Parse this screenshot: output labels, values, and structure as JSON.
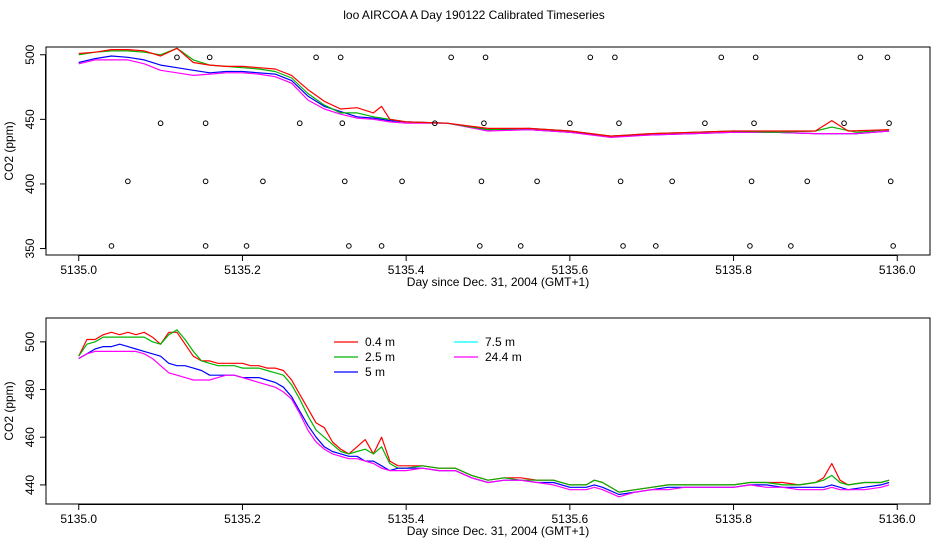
{
  "title": "loo AIRCOA A  Day 190122  Calibrated Timeseries",
  "chart_data": [
    {
      "type": "scatter",
      "xlabel": "Day since Dec. 31, 2004 (GMT+1)",
      "ylabel": "CO2 (ppm)",
      "xlim": [
        5134.96,
        5136.04
      ],
      "ylim": [
        345,
        506
      ],
      "x_ticks": [
        "5135.0",
        "5135.2",
        "5135.4",
        "5135.6",
        "5135.8",
        "5136.0"
      ],
      "x_tick_values": [
        5135.0,
        5135.2,
        5135.4,
        5135.6,
        5135.8,
        5136.0
      ],
      "y_ticks": [
        "350",
        "400",
        "450",
        "500"
      ],
      "y_tick_values": [
        350,
        400,
        450,
        500
      ],
      "series": [
        {
          "color": "#0000ff",
          "x": [
            5135.0,
            5135.02,
            5135.04,
            5135.06,
            5135.08,
            5135.1,
            5135.12,
            5135.14,
            5135.16,
            5135.18,
            5135.2,
            5135.22,
            5135.24,
            5135.26,
            5135.28,
            5135.3,
            5135.32,
            5135.34,
            5135.36,
            5135.38,
            5135.4,
            5135.45,
            5135.5,
            5135.55,
            5135.6,
            5135.65,
            5135.7,
            5135.75,
            5135.8,
            5135.85,
            5135.9,
            5135.95,
            5135.99
          ],
          "y": [
            494,
            497,
            499,
            498,
            496,
            492,
            490,
            488,
            486,
            487,
            487,
            486,
            485,
            480,
            468,
            460,
            456,
            452,
            451,
            449,
            448,
            447,
            442,
            442,
            440,
            437,
            438,
            439,
            440,
            440,
            439,
            439,
            441
          ]
        },
        {
          "color": "#ff00ff",
          "x": [
            5135.0,
            5135.02,
            5135.04,
            5135.06,
            5135.08,
            5135.1,
            5135.12,
            5135.14,
            5135.16,
            5135.18,
            5135.2,
            5135.22,
            5135.24,
            5135.26,
            5135.28,
            5135.3,
            5135.32,
            5135.34,
            5135.36,
            5135.38,
            5135.4,
            5135.45,
            5135.5,
            5135.55,
            5135.6,
            5135.65,
            5135.7,
            5135.75,
            5135.8,
            5135.85,
            5135.9,
            5135.95,
            5135.99
          ],
          "y": [
            493,
            496,
            496,
            496,
            493,
            488,
            486,
            484,
            485,
            486,
            486,
            485,
            483,
            478,
            465,
            458,
            454,
            451,
            450,
            448,
            447,
            447,
            441,
            442,
            440,
            436,
            438,
            439,
            440,
            440,
            439,
            439,
            441
          ]
        },
        {
          "color": "#00b400",
          "x": [
            5135.0,
            5135.02,
            5135.04,
            5135.06,
            5135.08,
            5135.1,
            5135.12,
            5135.14,
            5135.16,
            5135.18,
            5135.2,
            5135.22,
            5135.24,
            5135.26,
            5135.28,
            5135.3,
            5135.32,
            5135.34,
            5135.36,
            5135.38,
            5135.4,
            5135.45,
            5135.5,
            5135.55,
            5135.6,
            5135.65,
            5135.7,
            5135.75,
            5135.8,
            5135.85,
            5135.9,
            5135.92,
            5135.95,
            5135.99
          ],
          "y": [
            500,
            502,
            503,
            503,
            502,
            500,
            505,
            496,
            492,
            491,
            490,
            489,
            487,
            482,
            470,
            461,
            455,
            455,
            452,
            450,
            448,
            447,
            442,
            443,
            441,
            437,
            439,
            440,
            441,
            440,
            441,
            444,
            440,
            442
          ]
        },
        {
          "color": "#ff0000",
          "x": [
            5135.0,
            5135.02,
            5135.04,
            5135.06,
            5135.08,
            5135.1,
            5135.12,
            5135.14,
            5135.16,
            5135.18,
            5135.2,
            5135.22,
            5135.24,
            5135.26,
            5135.28,
            5135.3,
            5135.32,
            5135.34,
            5135.36,
            5135.37,
            5135.38,
            5135.4,
            5135.45,
            5135.5,
            5135.55,
            5135.6,
            5135.65,
            5135.7,
            5135.75,
            5135.8,
            5135.85,
            5135.9,
            5135.92,
            5135.94,
            5135.99
          ],
          "y": [
            501,
            502,
            504,
            504,
            503,
            499,
            505,
            494,
            492,
            491,
            491,
            490,
            489,
            484,
            473,
            464,
            458,
            459,
            455,
            460,
            450,
            448,
            447,
            443,
            443,
            441,
            437,
            439,
            440,
            441,
            441,
            441,
            449,
            441,
            442
          ]
        }
      ],
      "points": {
        "x": [
          5135.04,
          5135.06,
          5135.1,
          5135.12,
          5135.155,
          5135.155,
          5135.155,
          5135.16,
          5135.205,
          5135.225,
          5135.27,
          5135.29,
          5135.32,
          5135.322,
          5135.325,
          5135.33,
          5135.37,
          5135.395,
          5135.435,
          5135.455,
          5135.49,
          5135.492,
          5135.495,
          5135.497,
          5135.54,
          5135.56,
          5135.6,
          5135.625,
          5135.655,
          5135.66,
          5135.662,
          5135.665,
          5135.705,
          5135.725,
          5135.765,
          5135.785,
          5135.82,
          5135.822,
          5135.825,
          5135.827,
          5135.87,
          5135.89,
          5135.935,
          5135.955,
          5135.988,
          5135.99,
          5135.992,
          5135.995
        ],
        "y": [
          352,
          402,
          447,
          498,
          352,
          402,
          447,
          498,
          352,
          402,
          447,
          498,
          498,
          447,
          402,
          352,
          352,
          402,
          447,
          498,
          352,
          402,
          447,
          498,
          352,
          402,
          447,
          498,
          498,
          447,
          402,
          352,
          352,
          402,
          447,
          498,
          352,
          402,
          447,
          498,
          352,
          402,
          447,
          498,
          498,
          447,
          402,
          352
        ]
      }
    },
    {
      "type": "line",
      "xlabel": "Day since Dec. 31, 2004 (GMT+1)",
      "ylabel": "CO2 (ppm)",
      "xlim": [
        5134.96,
        5136.04
      ],
      "ylim": [
        432,
        510
      ],
      "x_ticks": [
        "5135.0",
        "5135.2",
        "5135.4",
        "5135.6",
        "5135.8",
        "5136.0"
      ],
      "x_tick_values": [
        5135.0,
        5135.2,
        5135.4,
        5135.6,
        5135.8,
        5136.0
      ],
      "y_ticks": [
        "440",
        "460",
        "480",
        "500"
      ],
      "y_tick_values": [
        440,
        460,
        480,
        500
      ],
      "legend": {
        "position": "top-left",
        "entries": [
          {
            "name": "0.4 m",
            "color": "#ff0000"
          },
          {
            "name": "2.5 m",
            "color": "#00b400"
          },
          {
            "name": "5 m",
            "color": "#0000ff"
          },
          {
            "name": "7.5 m",
            "color": "#00ffff"
          },
          {
            "name": "24.4 m",
            "color": "#ff00ff"
          }
        ]
      },
      "x": [
        5135.0,
        5135.01,
        5135.02,
        5135.03,
        5135.04,
        5135.05,
        5135.06,
        5135.07,
        5135.08,
        5135.09,
        5135.1,
        5135.11,
        5135.12,
        5135.13,
        5135.14,
        5135.15,
        5135.16,
        5135.17,
        5135.18,
        5135.19,
        5135.2,
        5135.21,
        5135.22,
        5135.23,
        5135.24,
        5135.25,
        5135.26,
        5135.27,
        5135.28,
        5135.29,
        5135.3,
        5135.31,
        5135.32,
        5135.33,
        5135.34,
        5135.35,
        5135.36,
        5135.37,
        5135.38,
        5135.39,
        5135.4,
        5135.42,
        5135.44,
        5135.46,
        5135.48,
        5135.5,
        5135.52,
        5135.54,
        5135.56,
        5135.58,
        5135.6,
        5135.62,
        5135.63,
        5135.64,
        5135.66,
        5135.68,
        5135.7,
        5135.72,
        5135.74,
        5135.76,
        5135.78,
        5135.8,
        5135.82,
        5135.84,
        5135.86,
        5135.88,
        5135.9,
        5135.91,
        5135.92,
        5135.93,
        5135.94,
        5135.96,
        5135.98,
        5135.99
      ],
      "series": [
        {
          "name": "0.4 m",
          "color": "#ff0000",
          "values": [
            494,
            501,
            501,
            503,
            504,
            503,
            504,
            503,
            504,
            502,
            499,
            504,
            504,
            499,
            494,
            492,
            492,
            491,
            491,
            491,
            491,
            490,
            490,
            489,
            489,
            488,
            484,
            478,
            472,
            466,
            464,
            458,
            455,
            453,
            456,
            459,
            453,
            460,
            450,
            448,
            448,
            448,
            447,
            447,
            444,
            442,
            443,
            443,
            442,
            442,
            440,
            440,
            442,
            441,
            437,
            438,
            439,
            440,
            440,
            440,
            440,
            440,
            441,
            441,
            441,
            440,
            441,
            443,
            449,
            442,
            440,
            441,
            441,
            442
          ]
        },
        {
          "name": "2.5 m",
          "color": "#00b400",
          "values": [
            494,
            499,
            500,
            502,
            502,
            502,
            502,
            502,
            502,
            500,
            499,
            503,
            505,
            501,
            496,
            492,
            491,
            490,
            490,
            490,
            489,
            489,
            489,
            488,
            487,
            486,
            482,
            476,
            469,
            463,
            460,
            457,
            454,
            453,
            454,
            455,
            453,
            456,
            449,
            447,
            447,
            448,
            447,
            447,
            444,
            442,
            443,
            442,
            442,
            442,
            440,
            440,
            442,
            441,
            437,
            438,
            439,
            440,
            440,
            440,
            440,
            440,
            441,
            441,
            440,
            440,
            441,
            442,
            444,
            441,
            440,
            441,
            441,
            442
          ]
        },
        {
          "name": "5 m",
          "color": "#0000ff",
          "values": [
            493,
            495,
            497,
            498,
            498,
            499,
            498,
            497,
            496,
            495,
            494,
            491,
            490,
            490,
            489,
            488,
            486,
            486,
            486,
            486,
            485,
            485,
            485,
            484,
            483,
            481,
            477,
            471,
            465,
            460,
            456,
            454,
            453,
            452,
            452,
            450,
            450,
            448,
            446,
            447,
            447,
            447,
            446,
            446,
            443,
            441,
            442,
            442,
            441,
            441,
            439,
            439,
            440,
            439,
            436,
            437,
            438,
            439,
            439,
            439,
            439,
            439,
            440,
            440,
            439,
            439,
            439,
            439,
            440,
            439,
            438,
            439,
            440,
            441
          ]
        },
        {
          "name": "24.4 m",
          "color": "#ff00ff",
          "values": [
            493,
            495,
            496,
            496,
            496,
            496,
            496,
            496,
            495,
            493,
            490,
            487,
            486,
            485,
            484,
            484,
            484,
            485,
            486,
            486,
            485,
            484,
            483,
            482,
            481,
            479,
            476,
            470,
            463,
            458,
            455,
            453,
            452,
            451,
            451,
            450,
            449,
            447,
            446,
            446,
            446,
            447,
            446,
            446,
            443,
            441,
            442,
            442,
            441,
            440,
            438,
            438,
            439,
            438,
            435,
            437,
            438,
            438,
            439,
            439,
            439,
            439,
            440,
            439,
            439,
            438,
            438,
            438,
            439,
            438,
            438,
            438,
            439,
            440
          ]
        }
      ]
    }
  ]
}
